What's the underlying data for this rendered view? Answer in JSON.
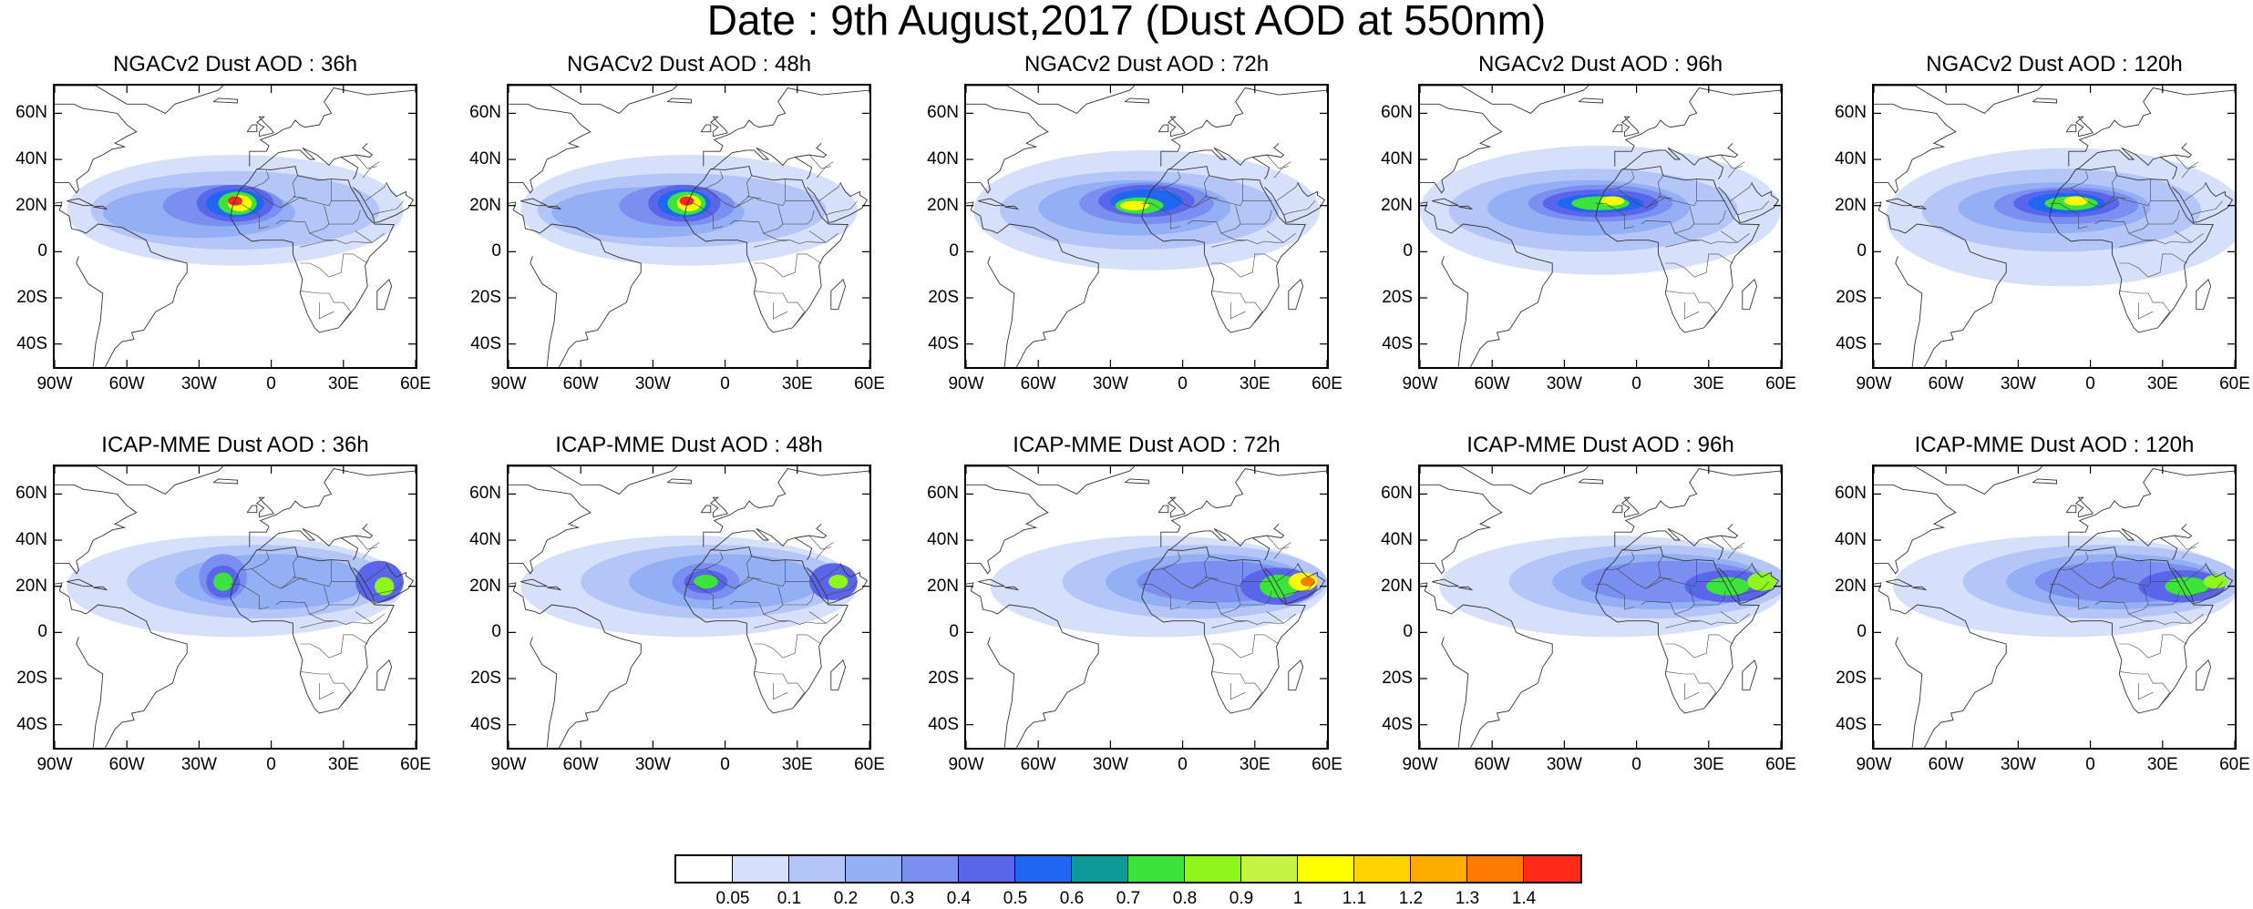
{
  "title": "Date : 9th August,2017 (Dust AOD at 550nm)",
  "panels": [
    {
      "title": "NGACv2 Dust AOD : 36h"
    },
    {
      "title": "NGACv2 Dust AOD : 48h"
    },
    {
      "title": "NGACv2 Dust AOD : 72h"
    },
    {
      "title": "NGACv2 Dust AOD : 96h"
    },
    {
      "title": "NGACv2 Dust AOD : 120h"
    },
    {
      "title": "ICAP-MME Dust AOD : 36h"
    },
    {
      "title": "ICAP-MME Dust AOD : 48h"
    },
    {
      "title": "ICAP-MME Dust AOD : 72h"
    },
    {
      "title": "ICAP-MME Dust AOD : 96h"
    },
    {
      "title": "ICAP-MME Dust AOD : 120h"
    }
  ],
  "lat_labels": [
    "60N",
    "40N",
    "20N",
    "0",
    "20S",
    "40S"
  ],
  "lon_labels": [
    "90W",
    "60W",
    "30W",
    "0",
    "30E",
    "60E"
  ],
  "colorbar": {
    "labels": [
      "0.05",
      "0.1",
      "0.2",
      "0.3",
      "0.4",
      "0.5",
      "0.6",
      "0.7",
      "0.8",
      "0.9",
      "1",
      "1.1",
      "1.2",
      "1.3",
      "1.4"
    ],
    "colors": [
      "#ffffff",
      "#d6e0fa",
      "#b4c6f7",
      "#93b0f5",
      "#7b8ff0",
      "#5a66ea",
      "#1f66f2",
      "#0f9a9a",
      "#3be33b",
      "#8ef51d",
      "#c5f542",
      "#ffff00",
      "#ffd200",
      "#ffab00",
      "#ff7a00",
      "#ff2a1a"
    ]
  }
}
